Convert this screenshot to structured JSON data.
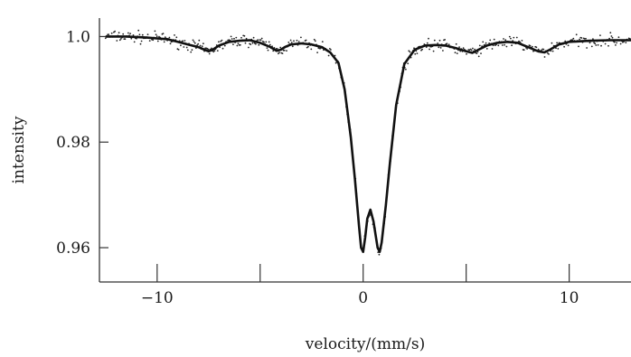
{
  "chart_data": {
    "type": "line",
    "title": "",
    "xlabel": "velocity/(mm/s)",
    "ylabel": "intensity",
    "xlim": [
      -12.8,
      13.0
    ],
    "ylim": [
      0.9535,
      1.0035
    ],
    "grid": false,
    "legend": "none",
    "x_ticks": [
      -10,
      -5,
      0,
      5,
      10
    ],
    "x_tick_labels": [
      {
        "value": -10,
        "label": "−10"
      },
      {
        "value": 0,
        "label": "0"
      },
      {
        "value": 10,
        "label": "10"
      }
    ],
    "y_ticks": [
      {
        "value": 1.0,
        "label": "1.0"
      },
      {
        "value": 0.98,
        "label": "0.98"
      },
      {
        "value": 0.96,
        "label": "0.96"
      }
    ],
    "colors": {
      "line": "#111111",
      "points": "#222222",
      "axis": "#333333"
    },
    "series": [
      {
        "kind": "fit-line",
        "x": [
          -12.5,
          -11.5,
          -10.5,
          -9.5,
          -9.0,
          -8.5,
          -8.0,
          -7.7,
          -7.5,
          -7.3,
          -7.0,
          -6.5,
          -6.0,
          -5.5,
          -5.0,
          -4.5,
          -4.2,
          -4.0,
          -3.8,
          -3.5,
          -3.0,
          -2.5,
          -2.0,
          -1.6,
          -1.2,
          -0.9,
          -0.6,
          -0.4,
          -0.2,
          -0.1,
          0.0,
          0.1,
          0.2,
          0.35,
          0.5,
          0.6,
          0.7,
          0.8,
          0.9,
          1.1,
          1.3,
          1.6,
          2.0,
          2.5,
          3.0,
          3.5,
          4.0,
          4.5,
          5.0,
          5.3,
          5.6,
          6.0,
          6.5,
          7.0,
          7.5,
          8.0,
          8.5,
          8.8,
          9.1,
          9.5,
          10.0,
          11.0,
          12.0,
          13.0
        ],
        "y": [
          1.0,
          1.0,
          0.9998,
          0.9995,
          0.999,
          0.9985,
          0.998,
          0.9975,
          0.9972,
          0.9975,
          0.9983,
          0.999,
          0.9992,
          0.9993,
          0.9988,
          0.998,
          0.9973,
          0.9975,
          0.998,
          0.9985,
          0.9987,
          0.9985,
          0.998,
          0.997,
          0.995,
          0.99,
          0.981,
          0.973,
          0.964,
          0.96,
          0.9592,
          0.962,
          0.9655,
          0.9672,
          0.965,
          0.9625,
          0.96,
          0.9592,
          0.961,
          0.968,
          0.976,
          0.987,
          0.9948,
          0.9975,
          0.9983,
          0.9984,
          0.9983,
          0.9978,
          0.9972,
          0.9969,
          0.9975,
          0.9983,
          0.9988,
          0.999,
          0.9988,
          0.998,
          0.9972,
          0.997,
          0.9976,
          0.9985,
          0.999,
          0.9992,
          0.9993,
          0.9993
        ]
      },
      {
        "kind": "data-points",
        "note_generated": true
      }
    ]
  }
}
